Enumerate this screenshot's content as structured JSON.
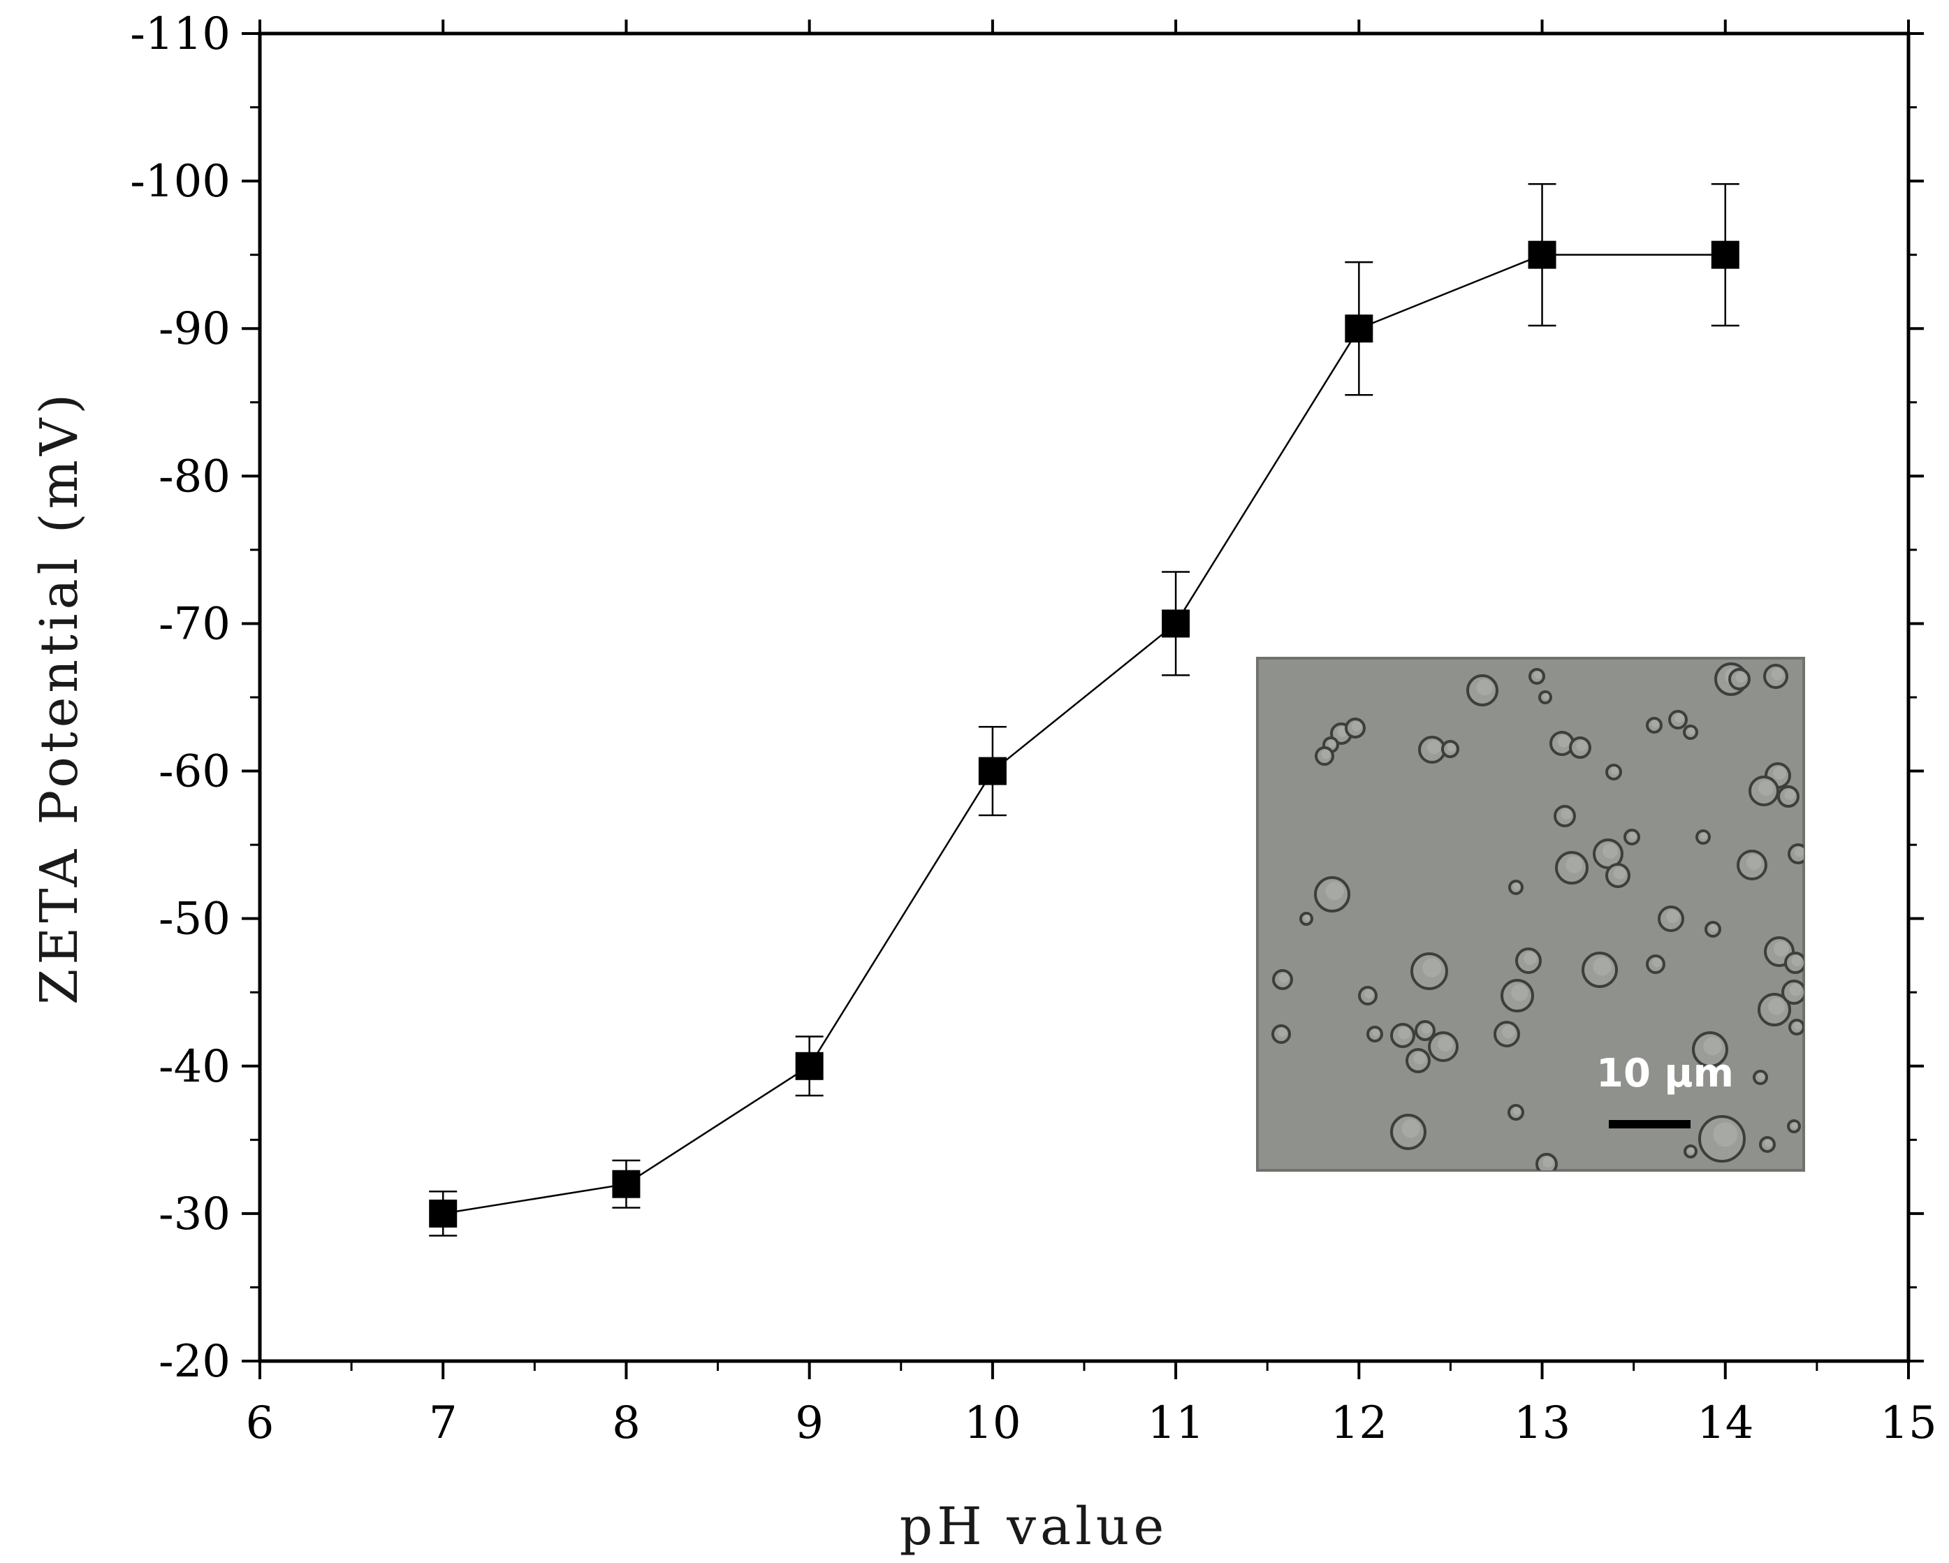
{
  "chart_data": {
    "type": "line",
    "xlabel": "pH value",
    "ylabel": "ZETA Potential (mV)",
    "xlim": [
      6,
      15
    ],
    "ylim": [
      -20,
      -110
    ],
    "y_axis_reversed": true,
    "x_ticks": [
      6,
      7,
      8,
      9,
      10,
      11,
      12,
      13,
      14,
      15
    ],
    "x_tick_labels": [
      "6",
      "7",
      "8",
      "9",
      "10",
      "11",
      "12",
      "13",
      "14",
      "15"
    ],
    "y_ticks": [
      -20,
      -30,
      -40,
      -50,
      -60,
      -70,
      -80,
      -90,
      -100,
      -110
    ],
    "y_tick_labels": [
      "-20",
      "-30",
      "-40",
      "-50",
      "-60",
      "-70",
      "-80",
      "-90",
      "-100",
      "-110"
    ],
    "grid": false,
    "legend": false,
    "series": [
      {
        "marker": "square",
        "color": "#000000",
        "x": [
          7,
          8,
          9,
          10,
          11,
          12,
          13,
          14
        ],
        "y": [
          -30,
          -32,
          -40,
          -60,
          -70,
          -90,
          -95,
          -95
        ],
        "error": [
          1.5,
          1.6,
          2.0,
          3.0,
          3.5,
          4.5,
          4.8,
          4.8
        ]
      }
    ],
    "inset": {
      "kind": "micrograph",
      "scale_bar_label": "10 μm",
      "background_color": "#8e918c"
    }
  }
}
